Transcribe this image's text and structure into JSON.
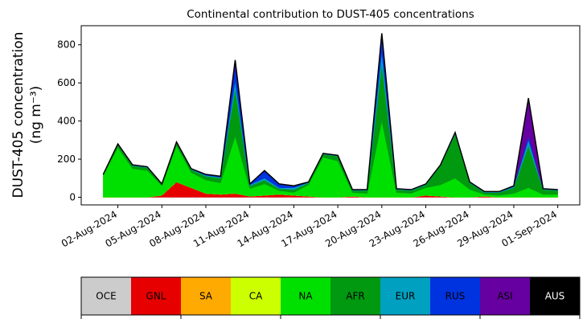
{
  "chart_data": {
    "type": "stacked_area",
    "title": "Continental contribution to DUST-405 concentrations",
    "y_label": [
      "DUST-405 concentration",
      "(ng m⁻³)"
    ],
    "x": [
      "2024-08-01",
      "2024-08-02",
      "2024-08-03",
      "2024-08-04",
      "2024-08-05",
      "2024-08-06",
      "2024-08-07",
      "2024-08-08",
      "2024-08-09",
      "2024-08-10",
      "2024-08-11",
      "2024-08-12",
      "2024-08-13",
      "2024-08-14",
      "2024-08-15",
      "2024-08-16",
      "2024-08-17",
      "2024-08-18",
      "2024-08-19",
      "2024-08-20",
      "2024-08-21",
      "2024-08-22",
      "2024-08-23",
      "2024-08-24",
      "2024-08-25",
      "2024-08-26",
      "2024-08-27",
      "2024-08-28",
      "2024-08-29",
      "2024-08-30",
      "2024-08-31",
      "2024-09-01"
    ],
    "xlim": [
      "2024-07-30T12:00",
      "2024-09-02T12:00"
    ],
    "xticks": [
      {
        "value": "2024-08-02",
        "label": "02-Aug-2024"
      },
      {
        "value": "2024-08-05",
        "label": "05-Aug-2024"
      },
      {
        "value": "2024-08-08",
        "label": "08-Aug-2024"
      },
      {
        "value": "2024-08-11",
        "label": "11-Aug-2024"
      },
      {
        "value": "2024-08-14",
        "label": "14-Aug-2024"
      },
      {
        "value": "2024-08-17",
        "label": "17-Aug-2024"
      },
      {
        "value": "2024-08-20",
        "label": "20-Aug-2024"
      },
      {
        "value": "2024-08-23",
        "label": "23-Aug-2024"
      },
      {
        "value": "2024-08-26",
        "label": "26-Aug-2024"
      },
      {
        "value": "2024-08-29",
        "label": "29-Aug-2024"
      },
      {
        "value": "2024-09-01",
        "label": "01-Sep-2024"
      }
    ],
    "ylim": [
      -40,
      900
    ],
    "yticks": [
      0,
      200,
      400,
      600,
      800
    ],
    "series": [
      {
        "name": "OCE",
        "color": "#cccccc",
        "values": [
          0,
          0,
          0,
          0,
          0,
          0,
          0,
          0,
          0,
          0,
          0,
          0,
          0,
          0,
          0,
          0,
          0,
          0,
          0,
          0,
          0,
          0,
          0,
          0,
          0,
          0,
          0,
          0,
          0,
          0,
          0,
          0
        ]
      },
      {
        "name": "GNL",
        "color": "#e60000",
        "values": [
          0,
          0,
          0,
          0,
          10,
          80,
          50,
          20,
          15,
          20,
          5,
          10,
          15,
          10,
          5,
          0,
          0,
          5,
          0,
          0,
          0,
          0,
          10,
          5,
          0,
          0,
          5,
          0,
          0,
          0,
          0,
          0
        ]
      },
      {
        "name": "SA",
        "color": "#ffaa00",
        "values": [
          0,
          0,
          0,
          0,
          0,
          0,
          0,
          0,
          0,
          0,
          0,
          0,
          0,
          0,
          0,
          0,
          0,
          0,
          0,
          0,
          0,
          0,
          0,
          0,
          0,
          0,
          0,
          0,
          0,
          0,
          0,
          0
        ]
      },
      {
        "name": "CA",
        "color": "#ccff00",
        "values": [
          0,
          0,
          0,
          0,
          0,
          0,
          0,
          0,
          0,
          0,
          0,
          0,
          0,
          0,
          0,
          0,
          0,
          0,
          0,
          0,
          0,
          0,
          0,
          0,
          0,
          0,
          0,
          0,
          0,
          0,
          0,
          0
        ]
      },
      {
        "name": "NA",
        "color": "#00e000",
        "values": [
          115,
          260,
          150,
          140,
          50,
          190,
          80,
          70,
          60,
          300,
          40,
          60,
          20,
          15,
          60,
          210,
          190,
          20,
          20,
          400,
          25,
          20,
          40,
          60,
          100,
          40,
          10,
          10,
          20,
          50,
          15,
          15
        ]
      },
      {
        "name": "AFR",
        "color": "#009910",
        "values": [
          5,
          15,
          15,
          15,
          8,
          15,
          15,
          20,
          25,
          250,
          15,
          20,
          10,
          15,
          10,
          15,
          25,
          10,
          15,
          300,
          15,
          15,
          15,
          100,
          230,
          35,
          10,
          15,
          30,
          220,
          25,
          20
        ]
      },
      {
        "name": "EUR",
        "color": "#00a0c0",
        "values": [
          0,
          3,
          3,
          3,
          1,
          3,
          3,
          5,
          5,
          40,
          5,
          10,
          5,
          10,
          3,
          3,
          3,
          3,
          3,
          60,
          3,
          3,
          3,
          3,
          5,
          3,
          3,
          3,
          5,
          30,
          3,
          3
        ]
      },
      {
        "name": "RUS",
        "color": "#0033e0",
        "values": [
          0,
          2,
          2,
          2,
          1,
          2,
          2,
          5,
          5,
          80,
          5,
          40,
          20,
          10,
          2,
          2,
          2,
          2,
          2,
          80,
          2,
          2,
          2,
          2,
          5,
          2,
          2,
          2,
          5,
          20,
          2,
          2
        ]
      },
      {
        "name": "ASI",
        "color": "#6600a0",
        "values": [
          0,
          0,
          0,
          0,
          0,
          0,
          0,
          0,
          0,
          30,
          0,
          0,
          0,
          0,
          0,
          0,
          0,
          0,
          0,
          20,
          0,
          0,
          0,
          0,
          0,
          0,
          0,
          0,
          0,
          200,
          0,
          0
        ]
      },
      {
        "name": "AUS",
        "color": "#000000",
        "values": [
          0,
          0,
          0,
          0,
          0,
          0,
          0,
          0,
          0,
          0,
          0,
          0,
          0,
          0,
          0,
          0,
          0,
          0,
          0,
          0,
          0,
          0,
          0,
          0,
          0,
          0,
          0,
          0,
          0,
          0,
          0,
          0
        ]
      }
    ]
  }
}
